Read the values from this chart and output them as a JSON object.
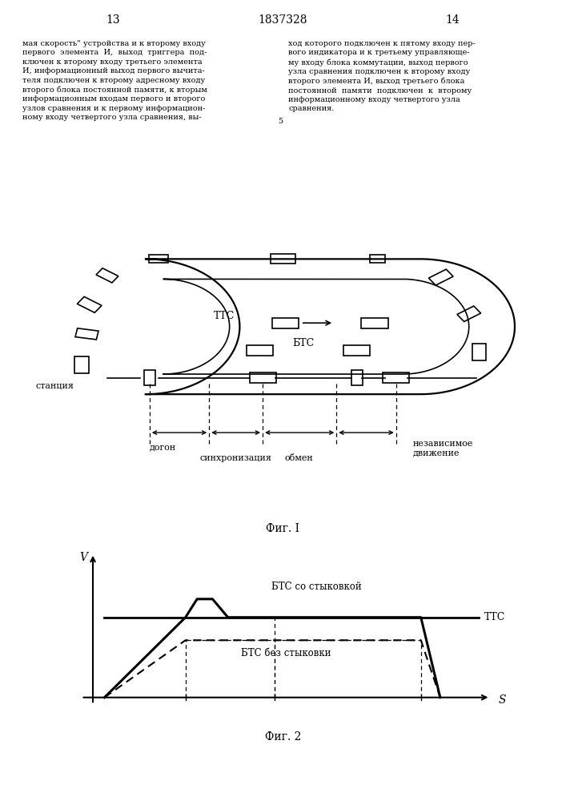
{
  "page_numbers": [
    "13",
    "1837328",
    "14"
  ],
  "fig1_title": "Фиг. I",
  "fig2_title": "Фиг. 2",
  "track_label_TTC": "ТТС",
  "track_label_BTC": "БТС",
  "station_label": "станция",
  "dogon_label": "догон",
  "sync_label": "синхронизация",
  "obmen_label": "обмен",
  "indep_label": "независимое\nдвижение",
  "graph_xlabel": "S",
  "graph_ylabel": "V",
  "graph_TTC_label": "ТТС",
  "graph_BTC_dock_label": "БТС со стыковкой",
  "graph_BTC_nodock_label": "БТС без стыковки",
  "bg_color": "#ffffff",
  "line_color": "#000000",
  "left_text_col1": "мая скорость\" устройства и к второму входу\nпервого  элемента  И,  выход  триггера  под-\nключен к второму входу третьего элемента\nИ, информационный выход первого вычита-\nтеля подключен к второму адресному входу\nвторого блока постоянной памяти, к вторым\nинформационным входам первого и второго\nузлов сравнения и к первому информацион-\nному входу четвертого узла сравнения, вы-",
  "right_text_col2": "ход которого подключен к пятому входу пер-\nвого индикатора и к третьему управляюще-\nму входу блока коммутации, выход первого\nузла сравнения подключен к второму входу\nвторого элемента И, выход третьего блока\nпостоянной  памяти  подключен  к  второму\nинформационному входу четвертого узла\nсравнения."
}
